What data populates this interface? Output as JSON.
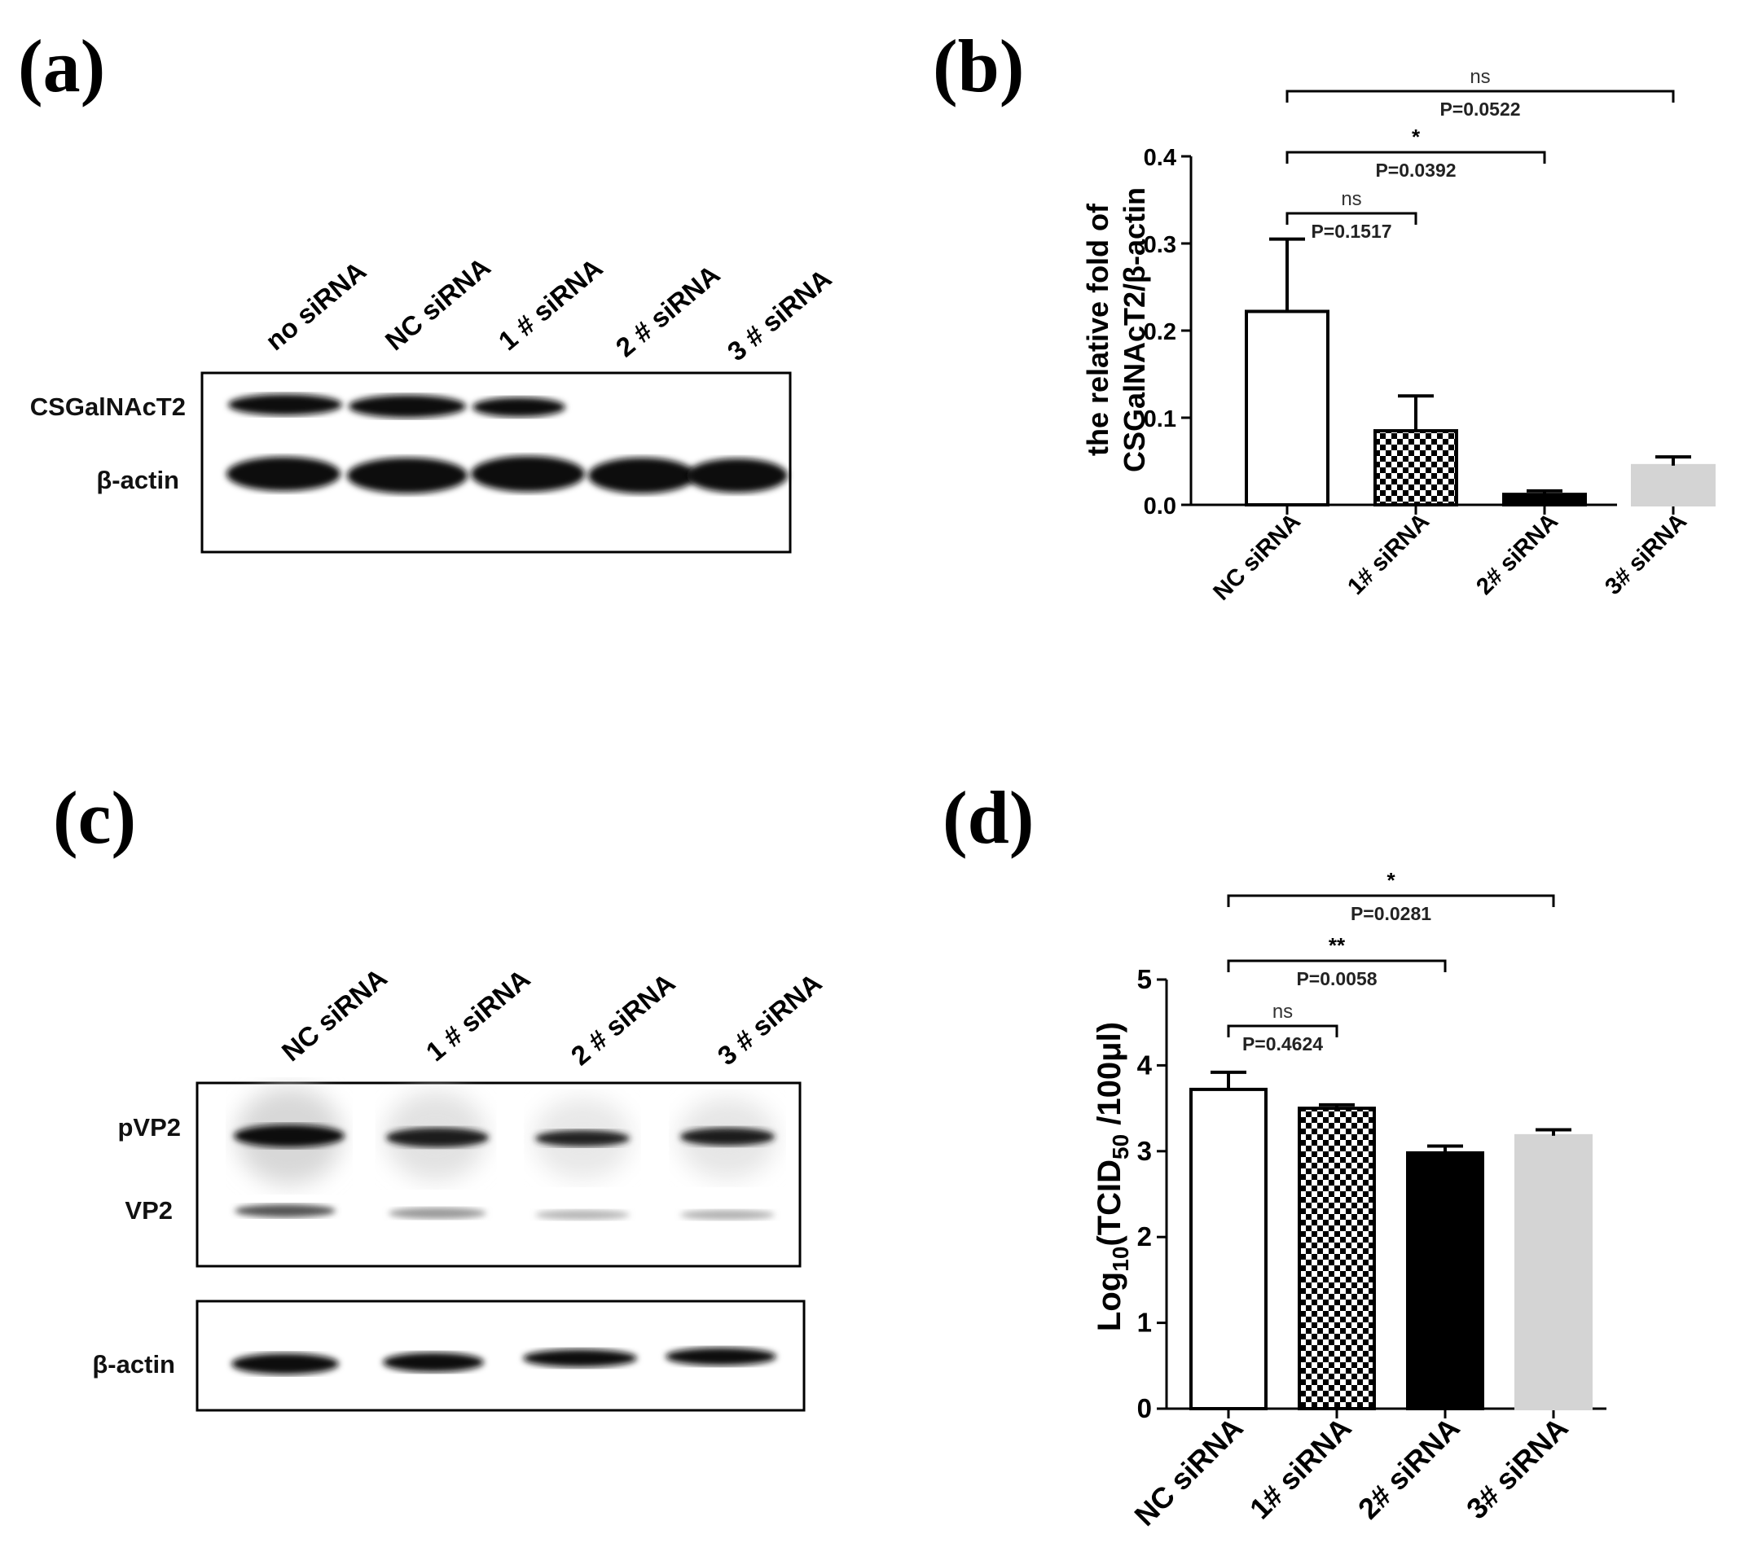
{
  "panels": {
    "a": {
      "letter": "(a)",
      "lanes": [
        "no siRNA",
        "NC siRNA",
        "1 # siRNA",
        "2 # siRNA",
        "3 # siRNA"
      ],
      "rows": [
        "CSGalNAcT2",
        "β-actin"
      ]
    },
    "b": {
      "letter": "(b)"
    },
    "c": {
      "letter": "(c)",
      "lanes": [
        "NC siRNA",
        "1 # siRNA",
        "2 # siRNA",
        "3 # siRNA"
      ],
      "upper_rows": [
        "pVP2",
        "VP2"
      ],
      "lower_rows": [
        "β-actin"
      ]
    },
    "d": {
      "letter": "(d)"
    }
  },
  "chart_data": [
    {
      "type": "bar",
      "panel": "b",
      "categories": [
        "NC siRNA",
        "1# siRNA",
        "2# siRNA",
        "3# siRNA"
      ],
      "values": [
        0.222,
        0.085,
        0.012,
        0.045
      ],
      "errors": [
        0.083,
        0.04,
        0.004,
        0.01
      ],
      "fills": [
        "white",
        "checker",
        "black",
        "lightgray"
      ],
      "ylabel_lines": [
        "the relative fold of",
        "CSGalNAcT2/β-actin"
      ],
      "ylim": [
        0,
        0.4
      ],
      "yticks": [
        "0.0",
        "0.1",
        "0.2",
        "0.3",
        "0.4"
      ],
      "comparisons": [
        {
          "from": 0,
          "to": 1,
          "mark": "ns",
          "p": "P=0.1517"
        },
        {
          "from": 0,
          "to": 2,
          "mark": "*",
          "p": "P=0.0392"
        },
        {
          "from": 0,
          "to": 3,
          "mark": "ns",
          "p": "P=0.0522"
        }
      ]
    },
    {
      "type": "bar",
      "panel": "d",
      "categories": [
        "NC siRNA",
        "1# siRNA",
        "2# siRNA",
        "3# siRNA"
      ],
      "values": [
        3.72,
        3.5,
        2.98,
        3.18
      ],
      "errors": [
        0.2,
        0.04,
        0.08,
        0.07
      ],
      "fills": [
        "white",
        "checker",
        "black",
        "lightgray"
      ],
      "ylabel_main": "Log",
      "ylabel_sub1": "10",
      "ylabel_mid": "(TCID",
      "ylabel_sub2": "50",
      "ylabel_end": " /100μl)",
      "ylim": [
        0,
        5
      ],
      "yticks": [
        "0",
        "1",
        "2",
        "3",
        "4",
        "5"
      ],
      "comparisons": [
        {
          "from": 0,
          "to": 1,
          "mark": "ns",
          "p": "P=0.4624"
        },
        {
          "from": 0,
          "to": 2,
          "mark": "**",
          "p": "P=0.0058"
        },
        {
          "from": 0,
          "to": 3,
          "mark": "*",
          "p": "P=0.0281"
        }
      ]
    }
  ]
}
